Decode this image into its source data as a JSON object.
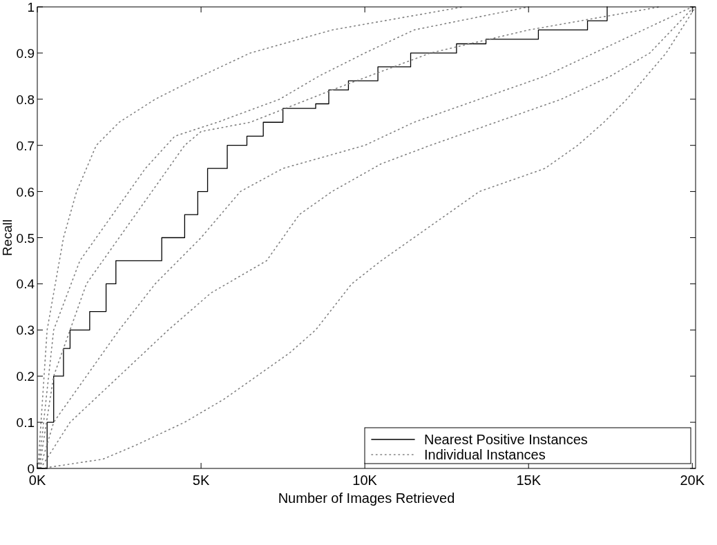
{
  "chart_data": {
    "type": "line",
    "xlabel": "Number of Images Retrieved",
    "ylabel": "Recall",
    "xlim": [
      0,
      20100
    ],
    "ylim": [
      0,
      1
    ],
    "xticks": [
      {
        "value": 0,
        "label": "0K"
      },
      {
        "value": 5000,
        "label": "5K"
      },
      {
        "value": 10000,
        "label": "10K"
      },
      {
        "value": 15000,
        "label": "15K"
      },
      {
        "value": 20000,
        "label": "20K"
      }
    ],
    "yticks": [
      0,
      0.1,
      0.2,
      0.3,
      0.4,
      0.5,
      0.6,
      0.7,
      0.8,
      0.9,
      1
    ],
    "grid": false,
    "legend": "bottom right",
    "series": [
      {
        "name": "Nearest Positive Instances",
        "type": "step",
        "line_style": "solid",
        "color": "#000000",
        "x": [
          0,
          300,
          500,
          800,
          1000,
          1600,
          2100,
          2400,
          3100,
          3800,
          4500,
          4900,
          5200,
          5800,
          6400,
          6900,
          7500,
          8500,
          8900,
          9500,
          10400,
          11400,
          12800,
          13700,
          15300,
          16800,
          17400
        ],
        "values": [
          0,
          0.1,
          0.2,
          0.26,
          0.3,
          0.34,
          0.4,
          0.45,
          0.45,
          0.5,
          0.55,
          0.6,
          0.65,
          0.7,
          0.72,
          0.75,
          0.78,
          0.79,
          0.82,
          0.84,
          0.87,
          0.9,
          0.92,
          0.93,
          0.95,
          0.97,
          1
        ]
      },
      {
        "name": "Individual Instances",
        "line_style": "dotted",
        "color": "#808080",
        "x": [
          20,
          300,
          800,
          1200,
          1800,
          2500,
          3600,
          5000,
          6500,
          9000,
          13000
        ],
        "values": [
          0,
          0.3,
          0.5,
          0.6,
          0.7,
          0.75,
          0.8,
          0.85,
          0.9,
          0.95,
          1
        ]
      },
      {
        "line_style": "dotted",
        "color": "#808080",
        "x": [
          40,
          500,
          1300,
          2300,
          3300,
          4200,
          5500,
          7400,
          8600,
          10000,
          11500,
          15000
        ],
        "values": [
          0,
          0.3,
          0.45,
          0.55,
          0.65,
          0.72,
          0.75,
          0.8,
          0.85,
          0.9,
          0.95,
          1
        ]
      },
      {
        "line_style": "dotted",
        "color": "#808080",
        "x": [
          60,
          500,
          1500,
          2500,
          3500,
          4500,
          5000,
          6500,
          9000,
          12000,
          15000,
          19000
        ],
        "values": [
          0,
          0.2,
          0.4,
          0.5,
          0.6,
          0.7,
          0.73,
          0.75,
          0.82,
          0.9,
          0.95,
          1
        ]
      },
      {
        "line_style": "dotted",
        "color": "#808080",
        "x": [
          80,
          500,
          1500,
          2500,
          3600,
          5000,
          6200,
          7500,
          10000,
          11500,
          13500,
          15500,
          17000,
          18500,
          20000
        ],
        "values": [
          0,
          0.1,
          0.2,
          0.3,
          0.4,
          0.5,
          0.6,
          0.65,
          0.7,
          0.75,
          0.8,
          0.85,
          0.9,
          0.95,
          1
        ]
      },
      {
        "line_style": "dotted",
        "color": "#808080",
        "x": [
          100,
          1000,
          2500,
          4000,
          5300,
          7000,
          8000,
          9000,
          10500,
          12000,
          14000,
          16000,
          17500,
          18700,
          20050
        ],
        "values": [
          0,
          0.1,
          0.2,
          0.3,
          0.38,
          0.45,
          0.55,
          0.6,
          0.66,
          0.7,
          0.75,
          0.8,
          0.85,
          0.9,
          1
        ]
      },
      {
        "line_style": "dotted",
        "color": "#808080",
        "x": [
          120,
          2000,
          3000,
          4500,
          5700,
          6700,
          7700,
          8500,
          9600,
          10500,
          11500,
          12500,
          13500,
          15500,
          16500,
          17300,
          18000,
          19200,
          20100
        ],
        "values": [
          0,
          0.02,
          0.05,
          0.1,
          0.15,
          0.2,
          0.25,
          0.3,
          0.4,
          0.45,
          0.5,
          0.55,
          0.6,
          0.65,
          0.7,
          0.75,
          0.8,
          0.9,
          1
        ]
      }
    ]
  }
}
